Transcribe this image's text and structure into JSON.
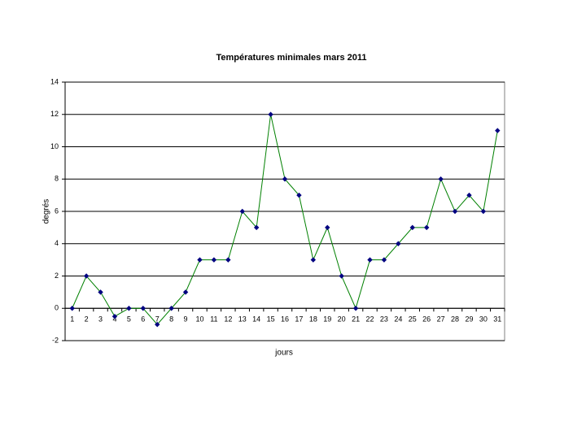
{
  "chart_data": {
    "type": "line",
    "title": "Températures minimales mars 2011",
    "x_label": "jours",
    "y_label": "degrés",
    "categories": [
      "1",
      "2",
      "3",
      "4",
      "5",
      "6",
      "7",
      "8",
      "9",
      "10",
      "11",
      "12",
      "13",
      "14",
      "15",
      "16",
      "17",
      "18",
      "19",
      "20",
      "21",
      "22",
      "23",
      "24",
      "25",
      "26",
      "27",
      "28",
      "29",
      "30",
      "31"
    ],
    "values": [
      0,
      2,
      1,
      -0.5,
      0,
      0,
      -1,
      0,
      1,
      3,
      3,
      3,
      6,
      5,
      12,
      8,
      7,
      3,
      5,
      2,
      0,
      3,
      3,
      4,
      5,
      5,
      8,
      6,
      7,
      6,
      11
    ],
    "color": "#008000",
    "marker_color": "#000080",
    "ylim": [
      -2,
      14
    ],
    "yticks": [
      -2,
      0,
      2,
      4,
      6,
      8,
      10,
      12,
      14
    ],
    "grid": true
  }
}
